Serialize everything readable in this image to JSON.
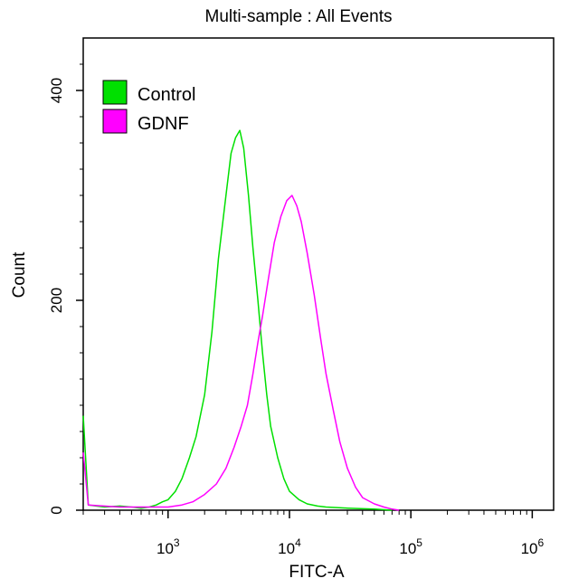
{
  "chart_data": {
    "type": "line",
    "title": "Multi-sample : All Events",
    "xlabel": "FITC-A",
    "ylabel": "Count",
    "x_scale": "log",
    "xlim": [
      200,
      1500000
    ],
    "ylim": [
      0,
      450
    ],
    "x_ticks": [
      {
        "value": 1000,
        "base": "10",
        "exp": "3"
      },
      {
        "value": 10000,
        "base": "10",
        "exp": "4"
      },
      {
        "value": 100000,
        "base": "10",
        "exp": "5"
      },
      {
        "value": 1000000,
        "base": "10",
        "exp": "6"
      }
    ],
    "y_ticks": [
      0,
      200,
      400
    ],
    "legend_position": "top-left",
    "series": [
      {
        "name": "Control",
        "color": "#00e000",
        "points": [
          [
            200,
            90
          ],
          [
            220,
            5
          ],
          [
            300,
            3
          ],
          [
            400,
            4
          ],
          [
            500,
            3
          ],
          [
            600,
            2
          ],
          [
            700,
            3
          ],
          [
            800,
            5
          ],
          [
            900,
            8
          ],
          [
            1000,
            10
          ],
          [
            1150,
            18
          ],
          [
            1300,
            30
          ],
          [
            1500,
            50
          ],
          [
            1700,
            70
          ],
          [
            2000,
            110
          ],
          [
            2300,
            170
          ],
          [
            2600,
            240
          ],
          [
            3000,
            300
          ],
          [
            3300,
            340
          ],
          [
            3600,
            355
          ],
          [
            3900,
            362
          ],
          [
            4200,
            345
          ],
          [
            4600,
            300
          ],
          [
            5000,
            250
          ],
          [
            5500,
            200
          ],
          [
            6000,
            150
          ],
          [
            6500,
            110
          ],
          [
            7000,
            80
          ],
          [
            8000,
            50
          ],
          [
            9000,
            30
          ],
          [
            10000,
            18
          ],
          [
            12000,
            10
          ],
          [
            14000,
            6
          ],
          [
            17000,
            4
          ],
          [
            20000,
            3
          ],
          [
            30000,
            2
          ],
          [
            50000,
            1
          ],
          [
            70000,
            0
          ]
        ]
      },
      {
        "name": "GDNF",
        "color": "#ff00ff",
        "points": [
          [
            200,
            55
          ],
          [
            220,
            5
          ],
          [
            400,
            3
          ],
          [
            700,
            3
          ],
          [
            1000,
            3
          ],
          [
            1300,
            5
          ],
          [
            1600,
            8
          ],
          [
            2000,
            15
          ],
          [
            2500,
            25
          ],
          [
            3000,
            40
          ],
          [
            3500,
            60
          ],
          [
            4000,
            80
          ],
          [
            4500,
            100
          ],
          [
            5000,
            130
          ],
          [
            5500,
            160
          ],
          [
            6000,
            185
          ],
          [
            6700,
            220
          ],
          [
            7500,
            255
          ],
          [
            8500,
            280
          ],
          [
            9500,
            295
          ],
          [
            10500,
            300
          ],
          [
            11500,
            290
          ],
          [
            12500,
            275
          ],
          [
            14000,
            245
          ],
          [
            16000,
            205
          ],
          [
            18000,
            165
          ],
          [
            20000,
            130
          ],
          [
            23000,
            95
          ],
          [
            26000,
            65
          ],
          [
            30000,
            40
          ],
          [
            35000,
            22
          ],
          [
            40000,
            12
          ],
          [
            50000,
            6
          ],
          [
            60000,
            3
          ],
          [
            70000,
            1
          ],
          [
            80000,
            0
          ]
        ]
      }
    ]
  }
}
